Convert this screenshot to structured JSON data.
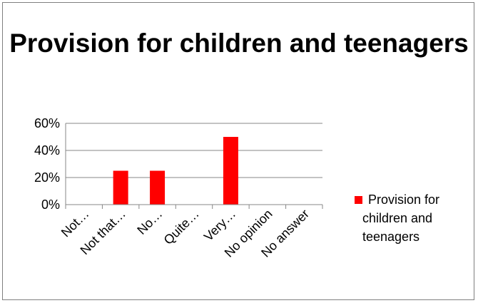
{
  "chart_data": {
    "type": "bar",
    "title": "Provision for children and teenagers",
    "categories": [
      "Not…",
      "Not that…",
      "No…",
      "Quite…",
      "Very…",
      "No opinion",
      "No answer"
    ],
    "series": [
      {
        "name": "Provision for children and teenagers",
        "values": [
          0,
          25,
          25,
          0,
          50,
          0,
          0
        ],
        "color": "#ff0000"
      }
    ],
    "yticks": [
      "0%",
      "20%",
      "40%",
      "60%"
    ],
    "ylim": [
      0,
      60
    ],
    "ylabel_format": "percent",
    "grid": true,
    "legend_position": "right",
    "xlabel": "",
    "ylabel": ""
  }
}
